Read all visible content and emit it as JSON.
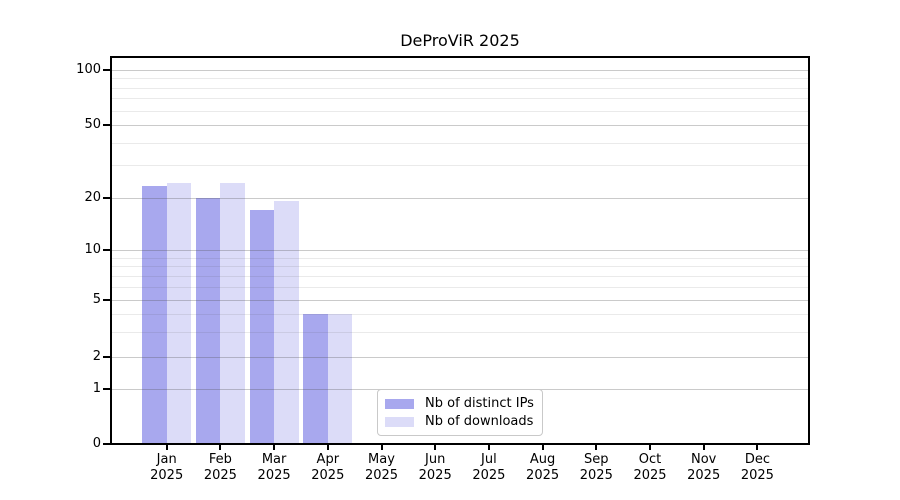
{
  "chart_data": {
    "type": "bar",
    "title": "DeProViR 2025",
    "categories": [
      "Jan",
      "Feb",
      "Mar",
      "Apr",
      "May",
      "Jun",
      "Jul",
      "Aug",
      "Sep",
      "Oct",
      "Nov",
      "Dec"
    ],
    "x_year_label": "2025",
    "series": [
      {
        "name": "Nb of distinct IPs",
        "color": "#a8a8ee",
        "values": [
          23,
          20,
          17,
          4,
          0,
          0,
          0,
          0,
          0,
          0,
          0,
          0
        ]
      },
      {
        "name": "Nb of downloads",
        "color": "#dcdcf8",
        "values": [
          24,
          24,
          19,
          4,
          0,
          0,
          0,
          0,
          0,
          0,
          0,
          0
        ]
      }
    ],
    "y_axis": {
      "scale": "log-like",
      "major_ticks": [
        0,
        1,
        2,
        5,
        10,
        20,
        50,
        100
      ],
      "minor_gridlines": [
        3,
        4,
        6,
        7,
        8,
        9,
        30,
        40,
        60,
        70,
        80,
        90
      ]
    },
    "legend": {
      "position": "inside-bottom-center"
    },
    "grid": "on"
  }
}
